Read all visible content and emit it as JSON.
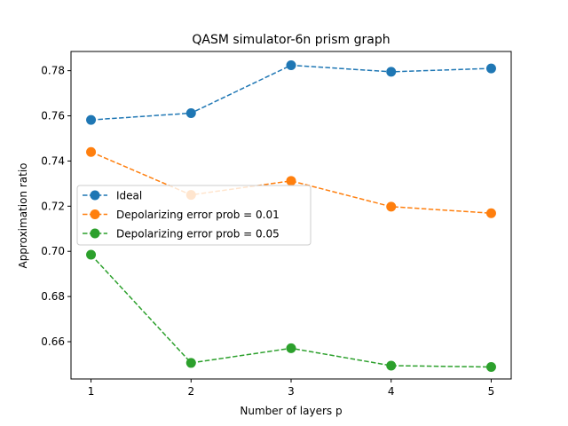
{
  "chart_data": {
    "type": "line",
    "title": "QASM simulator-6n prism graph",
    "xlabel": "Number of layers p",
    "ylabel": "Approximation ratio",
    "x": [
      1,
      2,
      3,
      4,
      5
    ],
    "xticks": [
      "1",
      "2",
      "3",
      "4",
      "5"
    ],
    "xlim": [
      0.8,
      5.2
    ],
    "yticks": [
      "0.66",
      "0.68",
      "0.70",
      "0.72",
      "0.74",
      "0.76",
      "0.78"
    ],
    "ylim": [
      0.6435,
      0.7885
    ],
    "grid": false,
    "legend_position": "center-left",
    "series": [
      {
        "name": "Ideal",
        "color": "#1f77b4",
        "values": [
          0.7582,
          0.7612,
          0.7824,
          0.7795,
          0.781
        ]
      },
      {
        "name": "Depolarizing error prob = 0.01",
        "color": "#ff7f0e",
        "values": [
          0.744,
          0.725,
          0.7312,
          0.7198,
          0.7169
        ]
      },
      {
        "name": "Depolarizing error prob = 0.05",
        "color": "#2ca02c",
        "values": [
          0.6985,
          0.6506,
          0.6571,
          0.6494,
          0.6488
        ]
      }
    ]
  }
}
